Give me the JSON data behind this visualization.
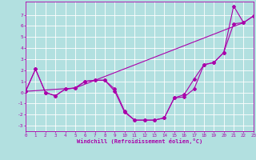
{
  "xlabel": "Windchill (Refroidissement éolien,°C)",
  "bg_color": "#b2e0e0",
  "line_color": "#aa00aa",
  "grid_color": "#c8e8e8",
  "x_ticks": [
    0,
    1,
    2,
    3,
    4,
    5,
    6,
    7,
    8,
    9,
    10,
    11,
    12,
    13,
    14,
    15,
    16,
    17,
    18,
    19,
    20,
    21,
    22,
    23
  ],
  "y_ticks": [
    -3,
    -2,
    -1,
    0,
    1,
    2,
    3,
    4,
    5,
    6,
    7
  ],
  "xlim": [
    0,
    23
  ],
  "ylim": [
    -3.5,
    8.2
  ],
  "line1_x": [
    0,
    1,
    2,
    3,
    4,
    5,
    6,
    7,
    8,
    9,
    10,
    11,
    12,
    13,
    14,
    15,
    16,
    17,
    18,
    19,
    20,
    21,
    22,
    23
  ],
  "line1_y": [
    0.1,
    2.1,
    0.0,
    -0.3,
    0.3,
    0.4,
    1.0,
    1.1,
    1.1,
    0.1,
    -1.8,
    -2.5,
    -2.5,
    -2.5,
    -2.3,
    -0.5,
    -0.4,
    0.3,
    2.5,
    2.7,
    3.6,
    7.8,
    6.3,
    6.9
  ],
  "line2_x": [
    0,
    1,
    2,
    3,
    4,
    5,
    6,
    7,
    8,
    9,
    10,
    11,
    12,
    13,
    14,
    15,
    16,
    17,
    18,
    19,
    20,
    21,
    22
  ],
  "line2_y": [
    0.1,
    2.1,
    0.0,
    -0.3,
    0.3,
    0.4,
    1.0,
    1.1,
    1.1,
    0.3,
    -1.7,
    -2.5,
    -2.5,
    -2.5,
    -2.3,
    -0.5,
    -0.2,
    1.2,
    2.5,
    2.7,
    3.6,
    6.2,
    6.3
  ],
  "line3_x": [
    0,
    5,
    22,
    23
  ],
  "line3_y": [
    0.1,
    0.4,
    6.3,
    6.9
  ],
  "marker_style": "D",
  "marker_size": 2.0,
  "line_width": 0.8
}
